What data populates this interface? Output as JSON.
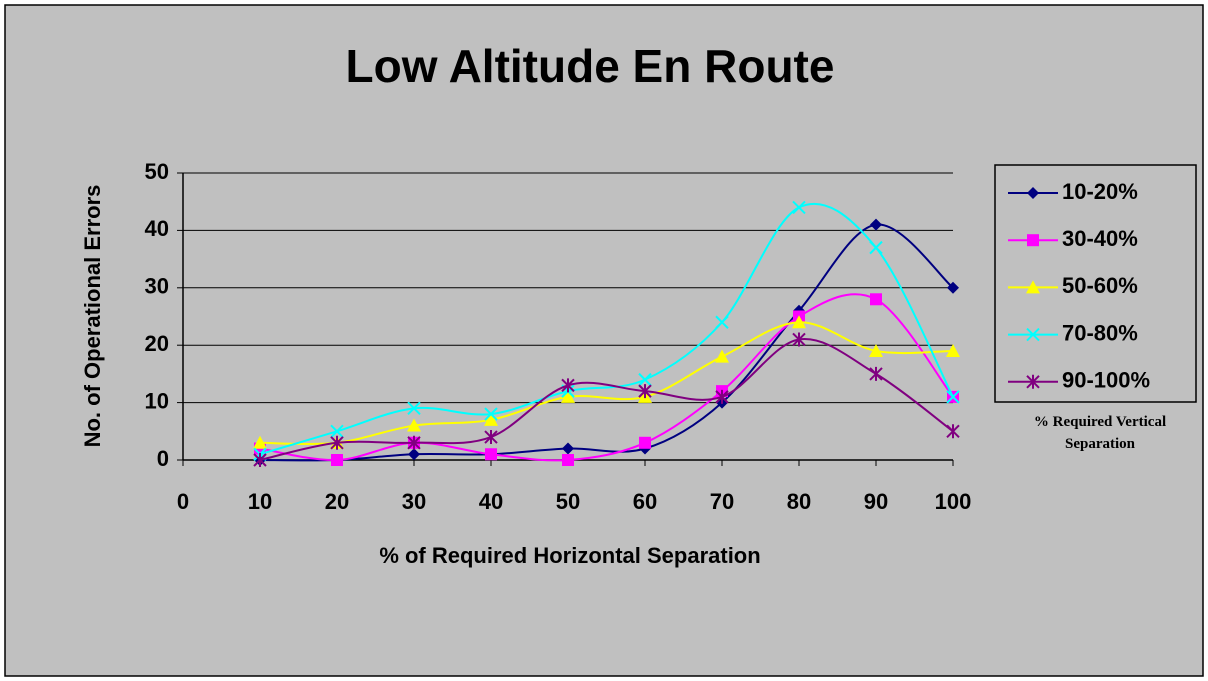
{
  "chart_data": {
    "type": "line",
    "title": "Low Altitude En Route",
    "x_label": "% of Required Horizontal Separation",
    "y_label": "No. of Operational Errors",
    "x": [
      10,
      20,
      30,
      40,
      50,
      60,
      70,
      80,
      90,
      100
    ],
    "series": [
      {
        "name": "10-20%",
        "color": "#000080",
        "marker": "diamond",
        "values": [
          0,
          0,
          1,
          1,
          2,
          2,
          10,
          26,
          41,
          30
        ]
      },
      {
        "name": "30-40%",
        "color": "#ff00ff",
        "marker": "square",
        "values": [
          2,
          0,
          3,
          1,
          0,
          3,
          12,
          25,
          28,
          11
        ]
      },
      {
        "name": "50-60%",
        "color": "#ffff00",
        "marker": "triangle",
        "values": [
          3,
          3,
          6,
          7,
          11,
          11,
          18,
          24,
          19,
          19
        ]
      },
      {
        "name": "70-80%",
        "color": "#00ffff",
        "marker": "x",
        "values": [
          1,
          5,
          9,
          8,
          12,
          14,
          24,
          44,
          37,
          11
        ]
      },
      {
        "name": "90-100%",
        "color": "#800080",
        "marker": "star",
        "values": [
          0,
          3,
          3,
          4,
          13,
          12,
          11,
          21,
          15,
          5
        ]
      }
    ],
    "legend_note": "% Required Vertical Separation",
    "xlim": [
      0,
      100
    ],
    "xticks": [
      0,
      10,
      20,
      30,
      40,
      50,
      60,
      70,
      80,
      90,
      100
    ],
    "ylim": [
      0,
      50
    ],
    "yticks": [
      0,
      10,
      20,
      30,
      40,
      50
    ],
    "grid": true,
    "smooth": true,
    "legend": "right"
  }
}
